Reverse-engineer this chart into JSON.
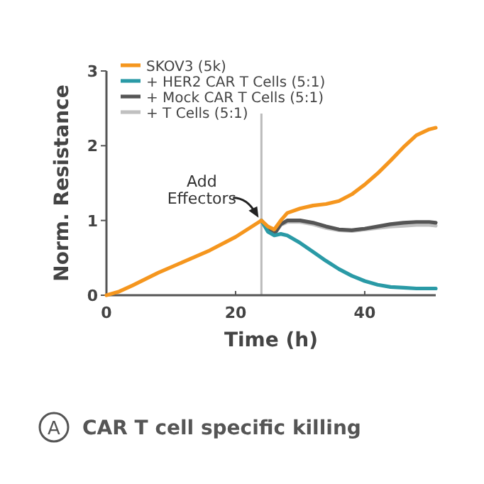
{
  "chart_data": {
    "type": "line",
    "xlabel": "Time (h)",
    "ylabel": "Norm. Resistance",
    "xlim": [
      0,
      51
    ],
    "ylim": [
      0,
      3
    ],
    "xticks": [
      0,
      20,
      40
    ],
    "yticks": [
      0,
      1,
      2,
      3
    ],
    "grid": false,
    "legend": "top left",
    "line_style": "solid",
    "ref_lines": [
      {
        "axis": "x",
        "value": 24,
        "color": "#bbbbbb"
      }
    ],
    "annotations": [
      {
        "text": "Add Effectors",
        "x": 24,
        "y": 1
      },
      "A",
      "CAR T cell specific killing"
    ],
    "series": [
      {
        "name": "SKOV3 (5k)",
        "color": "#f5961e",
        "x": [
          0,
          2,
          4,
          8,
          12,
          16,
          20,
          24,
          25,
          26,
          27,
          28,
          30,
          32,
          34,
          36,
          38,
          40,
          42,
          44,
          46,
          48,
          50,
          51
        ],
        "values": [
          0,
          0.05,
          0.13,
          0.3,
          0.45,
          0.6,
          0.78,
          1.0,
          0.92,
          0.88,
          1.0,
          1.1,
          1.16,
          1.2,
          1.22,
          1.26,
          1.35,
          1.48,
          1.63,
          1.8,
          1.98,
          2.14,
          2.22,
          2.24
        ]
      },
      {
        "name": "+ HER2 CAR T Cells (5:1)",
        "color": "#2a9aa6",
        "x": [
          24,
          25,
          26,
          27,
          28,
          30,
          32,
          34,
          36,
          38,
          40,
          42,
          44,
          46,
          48,
          51
        ],
        "values": [
          1.0,
          0.85,
          0.8,
          0.82,
          0.8,
          0.7,
          0.58,
          0.46,
          0.35,
          0.26,
          0.19,
          0.14,
          0.11,
          0.1,
          0.09,
          0.09
        ]
      },
      {
        "name": "+ Mock CAR T Cells (5:1)",
        "color": "#555555",
        "x": [
          24,
          25,
          26,
          27,
          28,
          30,
          32,
          34,
          36,
          38,
          40,
          42,
          44,
          46,
          48,
          50,
          51
        ],
        "values": [
          1.0,
          0.88,
          0.82,
          0.95,
          1.0,
          1.0,
          0.97,
          0.92,
          0.88,
          0.87,
          0.89,
          0.92,
          0.95,
          0.97,
          0.98,
          0.98,
          0.97
        ]
      },
      {
        "name": "+ T Cells (5:1)",
        "color": "#c0c0c0",
        "x": [
          24,
          25,
          26,
          27,
          28,
          30,
          32,
          34,
          36,
          38,
          40,
          42,
          44,
          46,
          48,
          50,
          51
        ],
        "values": [
          1.0,
          0.88,
          0.82,
          0.94,
          0.98,
          0.98,
          0.95,
          0.9,
          0.87,
          0.86,
          0.88,
          0.9,
          0.92,
          0.93,
          0.94,
          0.94,
          0.93
        ]
      }
    ]
  }
}
